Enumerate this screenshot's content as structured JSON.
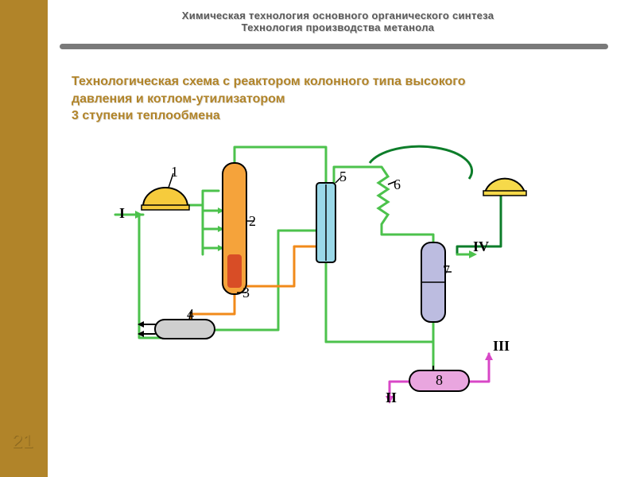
{
  "layout": {
    "sidebar_color": "#b18429",
    "rule_color": "#7a7a7a",
    "background": "#ffffff"
  },
  "header": {
    "line1": "Химическая технология основного органического синтеза",
    "line2": "Технология производства метанола"
  },
  "subtitle": {
    "text_line1": "Технологическая схема с реактором колонного типа высокого",
    "text_line2": "давления и котлом-утилизатором",
    "text_line3": "3 ступени теплообмена",
    "color": "#b18429"
  },
  "page_number": "21",
  "diagram": {
    "colors": {
      "pipe_green": "#4cc24c",
      "pipe_orange": "#f18a1a",
      "pipe_darkgreen": "#0d7d2a",
      "pipe_magenta": "#d847c7",
      "outline_black": "#000000",
      "reactor_fill": "#f5a33b",
      "reactor_inner": "#d84d26",
      "hx5_fill": "#9ad8e8",
      "vessel7_fill": "#bcbce0",
      "separator8_fill": "#e9a6df",
      "item4_fill": "#cfcfcf",
      "cap_yellow": "#f6cb3c",
      "cap_yellow2": "#f6d94a",
      "white": "#ffffff"
    },
    "labels": {
      "n1": "1",
      "n2": "2",
      "n3": "3",
      "n4": "4",
      "n5": "5",
      "n6": "6",
      "n7": "7",
      "n8": "8",
      "rI": "I",
      "rII": "II",
      "rIII": "III",
      "rIV": "IV"
    },
    "stroke_width": 2,
    "pipe_width": 3
  }
}
